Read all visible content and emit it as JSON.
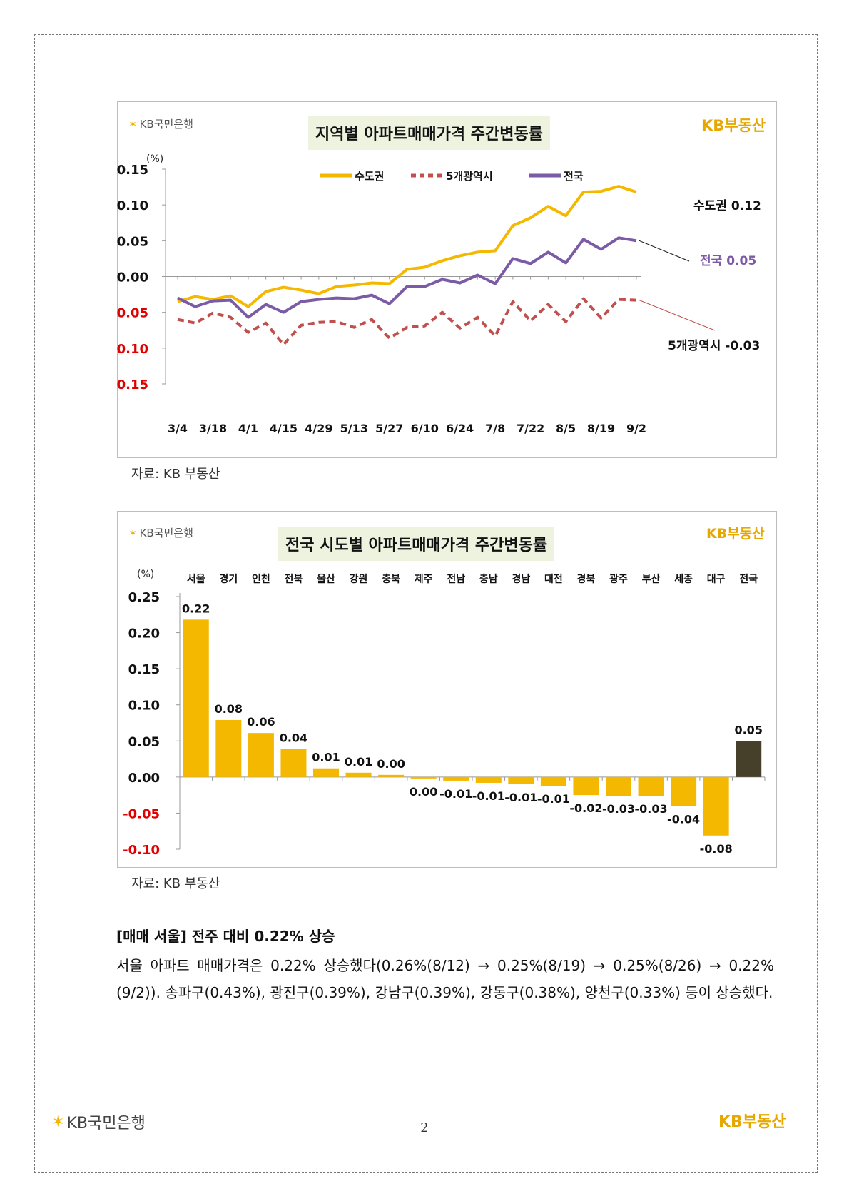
{
  "branding": {
    "bank_star": "✶",
    "bank_name": "KB국민은행",
    "land_name": "KB부동산"
  },
  "chart1": {
    "title": "지역별 아파트매매가격 주간변동률",
    "unit": "(%)",
    "source": "자료: KB 부동산"
  },
  "chart2": {
    "title": "전국 시도별 아파트매매가격 주간변동률",
    "unit": "(%)",
    "source": "자료: KB 부동산"
  },
  "chart_data": [
    {
      "type": "line",
      "title": "지역별 아파트매매가격 주간변동률",
      "ylabel": "(%)",
      "ylim": [
        -0.15,
        0.15
      ],
      "yticks": [
        "0.15",
        "0.10",
        "0.05",
        "0.00",
        "-0.05",
        "-0.10",
        "-0.15"
      ],
      "xtick_labels": [
        "3/4",
        "3/18",
        "4/1",
        "4/15",
        "4/29",
        "5/13",
        "5/27",
        "6/10",
        "6/24",
        "7/8",
        "7/22",
        "8/5",
        "8/19",
        "9/2"
      ],
      "legend_position": "top",
      "series": [
        {
          "name": "수도권",
          "color": "#f5b800",
          "style": "solid",
          "values": [
            -0.035,
            -0.028,
            -0.032,
            -0.027,
            -0.042,
            -0.021,
            -0.015,
            -0.019,
            -0.024,
            -0.014,
            -0.012,
            -0.009,
            -0.01,
            0.01,
            0.013,
            0.022,
            0.029,
            0.034,
            0.036,
            0.071,
            0.082,
            0.098,
            0.085,
            0.118,
            0.119,
            0.126,
            0.118
          ],
          "end_label": "수도권 0.12"
        },
        {
          "name": "5개광역시",
          "color": "#c0504d",
          "style": "dashed",
          "values": [
            -0.06,
            -0.065,
            -0.051,
            -0.057,
            -0.078,
            -0.065,
            -0.095,
            -0.068,
            -0.064,
            -0.063,
            -0.071,
            -0.06,
            -0.086,
            -0.071,
            -0.069,
            -0.05,
            -0.072,
            -0.057,
            -0.083,
            -0.035,
            -0.062,
            -0.039,
            -0.063,
            -0.031,
            -0.058,
            -0.032,
            -0.033
          ],
          "end_label": "5개광역시 -0.03"
        },
        {
          "name": "전국",
          "color": "#7b5aa6",
          "style": "solid",
          "values": [
            -0.03,
            -0.042,
            -0.034,
            -0.033,
            -0.057,
            -0.039,
            -0.05,
            -0.035,
            -0.032,
            -0.03,
            -0.031,
            -0.026,
            -0.038,
            -0.014,
            -0.014,
            -0.004,
            -0.009,
            0.002,
            -0.01,
            0.025,
            0.018,
            0.034,
            0.019,
            0.052,
            0.038,
            0.054,
            0.05
          ],
          "end_label": "전국 0.05"
        }
      ]
    },
    {
      "type": "bar",
      "title": "전국 시도별 아파트매매가격 주간변동률",
      "ylabel": "(%)",
      "ylim": [
        -0.1,
        0.25
      ],
      "yticks": [
        "0.25",
        "0.20",
        "0.15",
        "0.10",
        "0.05",
        "0.00",
        "-0.05",
        "-0.10"
      ],
      "categories": [
        "서울",
        "경기",
        "인천",
        "전북",
        "울산",
        "강원",
        "충북",
        "제주",
        "전남",
        "충남",
        "경남",
        "대전",
        "경북",
        "광주",
        "부산",
        "세종",
        "대구",
        "전국"
      ],
      "values": [
        0.218,
        0.079,
        0.061,
        0.039,
        0.012,
        0.006,
        0.003,
        -0.002,
        -0.005,
        -0.008,
        -0.01,
        -0.012,
        -0.025,
        -0.026,
        -0.026,
        -0.04,
        -0.081,
        0.05
      ],
      "data_labels": [
        "0.22",
        "0.08",
        "0.06",
        "0.04",
        "0.01",
        "0.01",
        "0.00",
        "0.00",
        "-0.01",
        "-0.01",
        "-0.01",
        "-0.01",
        "-0.02",
        "-0.03",
        "-0.03",
        "-0.04",
        "-0.08",
        "0.05"
      ],
      "bar_color": "#f5b800",
      "highlight_color": "#463f2a",
      "highlight_category": "전국"
    }
  ],
  "body": {
    "heading": "[매매 서울] 전주 대비 0.22% 상승",
    "paragraph": "서울 아파트 매매가격은 0.22% 상승했다(0.26%(8/12) → 0.25%(8/19) → 0.25%(8/26) → 0.22%(9/2)). 송파구(0.43%), 광진구(0.39%), 강남구(0.39%), 강동구(0.38%), 양천구(0.33%) 등이 상승했다."
  },
  "footer": {
    "page_number": "2"
  }
}
